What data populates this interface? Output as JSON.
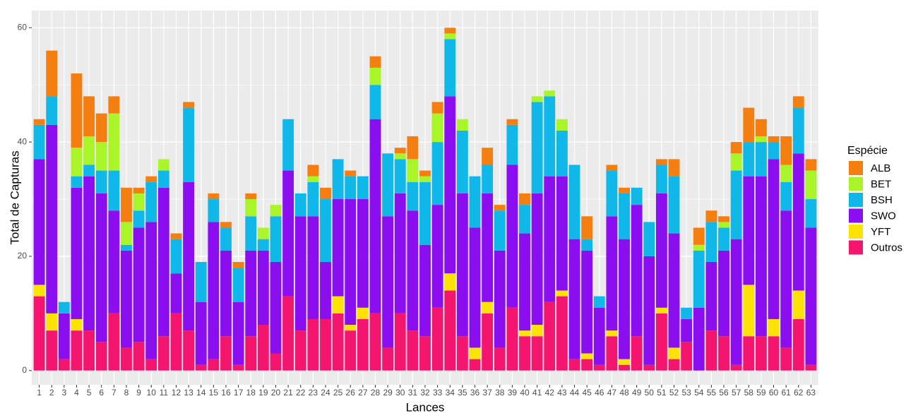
{
  "chart_data": {
    "type": "stacked_bar",
    "x_label": "Lances",
    "y_label": "Total de Capturas",
    "legend_title": "Espécie",
    "legend_position": "right",
    "grid": true,
    "categories": [
      "1",
      "2",
      "3",
      "4",
      "5",
      "6",
      "7",
      "8",
      "9",
      "10",
      "11",
      "12",
      "13",
      "14",
      "15",
      "16",
      "17",
      "18",
      "19",
      "20",
      "21",
      "22",
      "23",
      "24",
      "25",
      "26",
      "27",
      "28",
      "29",
      "30",
      "31",
      "32",
      "33",
      "34",
      "35",
      "36",
      "37",
      "38",
      "39",
      "40",
      "41",
      "42",
      "43",
      "44",
      "45",
      "46",
      "47",
      "48",
      "49",
      "50",
      "51",
      "52",
      "53",
      "54",
      "55",
      "56",
      "57",
      "58",
      "59",
      "60",
      "61",
      "62",
      "63"
    ],
    "ylim": [
      -2.5,
      63
    ],
    "yticks": [
      0,
      20,
      40,
      60
    ],
    "series": [
      {
        "name": "ALB",
        "color": "#f47f10",
        "values": [
          1,
          8,
          0,
          13,
          7,
          5,
          3,
          6,
          1,
          1,
          0,
          1,
          1,
          0,
          1,
          1,
          1,
          1,
          0,
          0,
          0,
          0,
          2,
          2,
          0,
          1,
          0,
          2,
          0,
          1,
          4,
          1,
          2,
          1,
          0,
          0,
          3,
          1,
          1,
          2,
          0,
          0,
          0,
          0,
          4,
          0,
          1,
          1,
          0,
          0,
          1,
          3,
          0,
          3,
          2,
          1,
          2,
          6,
          3,
          1,
          5,
          2,
          2
        ]
      },
      {
        "name": "BET",
        "color": "#aaf52a",
        "values": [
          0,
          0,
          0,
          5,
          5,
          5,
          10,
          4,
          3,
          0,
          2,
          0,
          0,
          0,
          0,
          0,
          0,
          3,
          2,
          2,
          0,
          0,
          1,
          0,
          0,
          0,
          0,
          3,
          0,
          1,
          4,
          1,
          5,
          1,
          2,
          0,
          0,
          0,
          0,
          0,
          1,
          1,
          2,
          0,
          0,
          0,
          0,
          0,
          0,
          0,
          0,
          0,
          0,
          1,
          0,
          1,
          3,
          0,
          1,
          0,
          3,
          0,
          5
        ]
      },
      {
        "name": "BSH",
        "color": "#10b8ea",
        "values": [
          6,
          5,
          2,
          2,
          2,
          4,
          7,
          1,
          3,
          7,
          3,
          6,
          13,
          7,
          4,
          4,
          6,
          6,
          2,
          8,
          9,
          4,
          6,
          11,
          7,
          4,
          4,
          6,
          11,
          6,
          5,
          11,
          11,
          10,
          11,
          9,
          5,
          7,
          7,
          5,
          16,
          14,
          8,
          13,
          2,
          2,
          8,
          8,
          3,
          6,
          5,
          10,
          2,
          10,
          7,
          4,
          12,
          6,
          6,
          3,
          5,
          8,
          5
        ]
      },
      {
        "name": "SWO",
        "color": "#8a0ef0",
        "values": [
          22,
          33,
          8,
          23,
          27,
          26,
          18,
          17,
          20,
          24,
          26,
          7,
          26,
          11,
          24,
          15,
          11,
          15,
          13,
          16,
          22,
          20,
          18,
          10,
          17,
          22,
          19,
          34,
          23,
          21,
          21,
          16,
          18,
          31,
          25,
          21,
          19,
          17,
          25,
          17,
          23,
          22,
          20,
          21,
          18,
          10,
          20,
          21,
          23,
          19,
          20,
          20,
          4,
          11,
          12,
          15,
          22,
          19,
          28,
          28,
          24,
          24,
          24
        ]
      },
      {
        "name": "YFT",
        "color": "#fce205",
        "values": [
          2,
          3,
          0,
          2,
          0,
          0,
          0,
          0,
          0,
          0,
          0,
          0,
          0,
          0,
          0,
          0,
          0,
          0,
          0,
          0,
          0,
          0,
          0,
          0,
          3,
          1,
          2,
          0,
          0,
          0,
          0,
          0,
          0,
          3,
          0,
          2,
          2,
          0,
          0,
          1,
          2,
          0,
          1,
          0,
          1,
          0,
          1,
          1,
          0,
          0,
          1,
          2,
          0,
          0,
          0,
          0,
          0,
          9,
          0,
          3,
          0,
          5,
          0
        ]
      },
      {
        "name": "Outros",
        "color": "#f3156e",
        "values": [
          13,
          7,
          2,
          7,
          7,
          5,
          10,
          4,
          5,
          2,
          6,
          10,
          7,
          1,
          2,
          6,
          1,
          6,
          8,
          3,
          13,
          7,
          9,
          9,
          10,
          7,
          9,
          10,
          4,
          10,
          7,
          6,
          11,
          14,
          6,
          2,
          10,
          4,
          11,
          6,
          6,
          12,
          13,
          2,
          2,
          1,
          6,
          1,
          6,
          1,
          10,
          2,
          5,
          0,
          7,
          6,
          1,
          6,
          6,
          6,
          4,
          9,
          1
        ]
      }
    ]
  }
}
